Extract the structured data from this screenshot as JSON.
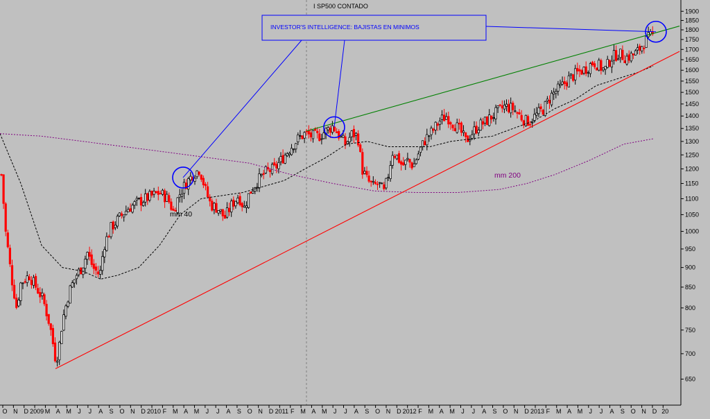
{
  "chart_data": {
    "type": "candlestick",
    "title": "I SP500 CONTADO",
    "annotation": "INVESTOR'S INTELLIGENCE: BAJISTAS EN MINIMOS",
    "y_scale": "log",
    "ylim": [
      620,
      1920
    ],
    "y_ticks": [
      650,
      700,
      750,
      800,
      850,
      900,
      950,
      1000,
      1050,
      1100,
      1150,
      1200,
      1250,
      1300,
      1350,
      1400,
      1450,
      1500,
      1550,
      1600,
      1650,
      1700,
      1750,
      1800,
      1850,
      1900
    ],
    "x_tick_labels": [
      "O",
      "N",
      "D",
      "2009",
      "M",
      "A",
      "M",
      "J",
      "J",
      "A",
      "S",
      "O",
      "N",
      "D",
      "2010",
      "F",
      "M",
      "A",
      "M",
      "J",
      "J",
      "A",
      "S",
      "O",
      "N",
      "D",
      "2011",
      "F",
      "M",
      "A",
      "M",
      "J",
      "J",
      "A",
      "S",
      "O",
      "N",
      "D",
      "2012",
      "F",
      "M",
      "A",
      "M",
      "J",
      "J",
      "A",
      "S",
      "O",
      "N",
      "D",
      "2013",
      "F",
      "M",
      "A",
      "M",
      "J",
      "J",
      "A",
      "S",
      "O",
      "N",
      "D",
      "20"
    ],
    "series": [
      {
        "name": "mm 40",
        "style": "dashed",
        "color": "#000000"
      },
      {
        "name": "mm 200",
        "style": "dotted",
        "color": "#800080"
      }
    ],
    "price_path": [
      [
        0,
        1240
      ],
      [
        8,
        1000
      ],
      [
        16,
        880
      ],
      [
        24,
        800
      ],
      [
        30,
        860
      ],
      [
        42,
        880
      ],
      [
        52,
        850
      ],
      [
        62,
        820
      ],
      [
        72,
        760
      ],
      [
        80,
        690
      ],
      [
        84,
        700
      ],
      [
        90,
        770
      ],
      [
        100,
        840
      ],
      [
        110,
        880
      ],
      [
        118,
        900
      ],
      [
        126,
        940
      ],
      [
        134,
        900
      ],
      [
        144,
        880
      ],
      [
        150,
        960
      ],
      [
        160,
        1010
      ],
      [
        172,
        1040
      ],
      [
        185,
        1070
      ],
      [
        200,
        1090
      ],
      [
        215,
        1105
      ],
      [
        230,
        1120
      ],
      [
        242,
        1100
      ],
      [
        250,
        1060
      ],
      [
        258,
        1110
      ],
      [
        268,
        1150
      ],
      [
        278,
        1180
      ],
      [
        288,
        1200
      ],
      [
        296,
        1130
      ],
      [
        304,
        1080
      ],
      [
        314,
        1070
      ],
      [
        324,
        1040
      ],
      [
        334,
        1080
      ],
      [
        344,
        1110
      ],
      [
        352,
        1070
      ],
      [
        360,
        1120
      ],
      [
        372,
        1160
      ],
      [
        384,
        1190
      ],
      [
        396,
        1200
      ],
      [
        408,
        1240
      ],
      [
        420,
        1280
      ],
      [
        430,
        1310
      ],
      [
        440,
        1330
      ],
      [
        450,
        1320
      ],
      [
        460,
        1320
      ],
      [
        470,
        1340
      ],
      [
        480,
        1360
      ],
      [
        490,
        1320
      ],
      [
        498,
        1290
      ],
      [
        508,
        1330
      ],
      [
        516,
        1320
      ],
      [
        522,
        1200
      ],
      [
        530,
        1160
      ],
      [
        538,
        1140
      ],
      [
        546,
        1150
      ],
      [
        554,
        1120
      ],
      [
        560,
        1180
      ],
      [
        566,
        1260
      ],
      [
        574,
        1240
      ],
      [
        580,
        1210
      ],
      [
        588,
        1230
      ],
      [
        596,
        1210
      ],
      [
        606,
        1270
      ],
      [
        614,
        1310
      ],
      [
        624,
        1340
      ],
      [
        634,
        1380
      ],
      [
        644,
        1400
      ],
      [
        654,
        1370
      ],
      [
        664,
        1340
      ],
      [
        672,
        1300
      ],
      [
        680,
        1330
      ],
      [
        690,
        1360
      ],
      [
        702,
        1380
      ],
      [
        714,
        1410
      ],
      [
        728,
        1440
      ],
      [
        740,
        1430
      ],
      [
        750,
        1400
      ],
      [
        758,
        1380
      ],
      [
        764,
        1380
      ],
      [
        772,
        1400
      ],
      [
        784,
        1430
      ],
      [
        796,
        1490
      ],
      [
        808,
        1520
      ],
      [
        820,
        1560
      ],
      [
        834,
        1590
      ],
      [
        846,
        1610
      ],
      [
        856,
        1640
      ],
      [
        864,
        1620
      ],
      [
        872,
        1600
      ],
      [
        882,
        1660
      ],
      [
        892,
        1680
      ],
      [
        902,
        1660
      ],
      [
        912,
        1670
      ],
      [
        920,
        1690
      ],
      [
        928,
        1730
      ],
      [
        936,
        1760
      ],
      [
        942,
        1770
      ]
    ],
    "mm40_path": [
      [
        0,
        1330
      ],
      [
        30,
        1150
      ],
      [
        60,
        960
      ],
      [
        90,
        900
      ],
      [
        120,
        890
      ],
      [
        145,
        870
      ],
      [
        170,
        880
      ],
      [
        200,
        900
      ],
      [
        230,
        960
      ],
      [
        260,
        1050
      ],
      [
        290,
        1100
      ],
      [
        320,
        1110
      ],
      [
        350,
        1120
      ],
      [
        380,
        1140
      ],
      [
        410,
        1160
      ],
      [
        440,
        1200
      ],
      [
        470,
        1240
      ],
      [
        500,
        1290
      ],
      [
        530,
        1300
      ],
      [
        560,
        1280
      ],
      [
        590,
        1280
      ],
      [
        620,
        1280
      ],
      [
        650,
        1300
      ],
      [
        680,
        1310
      ],
      [
        710,
        1320
      ],
      [
        740,
        1350
      ],
      [
        770,
        1380
      ],
      [
        800,
        1430
      ],
      [
        830,
        1470
      ],
      [
        860,
        1530
      ],
      [
        890,
        1560
      ],
      [
        920,
        1590
      ],
      [
        942,
        1620
      ]
    ],
    "mm200_path": [
      [
        0,
        1330
      ],
      [
        60,
        1320
      ],
      [
        120,
        1300
      ],
      [
        180,
        1280
      ],
      [
        240,
        1260
      ],
      [
        300,
        1240
      ],
      [
        360,
        1220
      ],
      [
        420,
        1180
      ],
      [
        480,
        1150
      ],
      [
        540,
        1125
      ],
      [
        600,
        1120
      ],
      [
        660,
        1120
      ],
      [
        720,
        1130
      ],
      [
        760,
        1150
      ],
      [
        800,
        1180
      ],
      [
        850,
        1230
      ],
      [
        900,
        1290
      ],
      [
        942,
        1310
      ]
    ],
    "trendlines": [
      {
        "name": "support",
        "color": "#ff0000",
        "from": [
          80,
          670
        ],
        "to": [
          980,
          1690
        ]
      },
      {
        "name": "resistance",
        "color": "#008000",
        "from": [
          442,
          1340
        ],
        "to": [
          980,
          1820
        ]
      }
    ],
    "highlight_circles": [
      [
        264,
        1170
      ],
      [
        482,
        1355
      ],
      [
        946,
        1790
      ]
    ],
    "labels": [
      {
        "text": "mm 40",
        "x": 245,
        "y": 1045
      },
      {
        "text": "mm 200",
        "x": 713,
        "y": 1170
      }
    ]
  }
}
